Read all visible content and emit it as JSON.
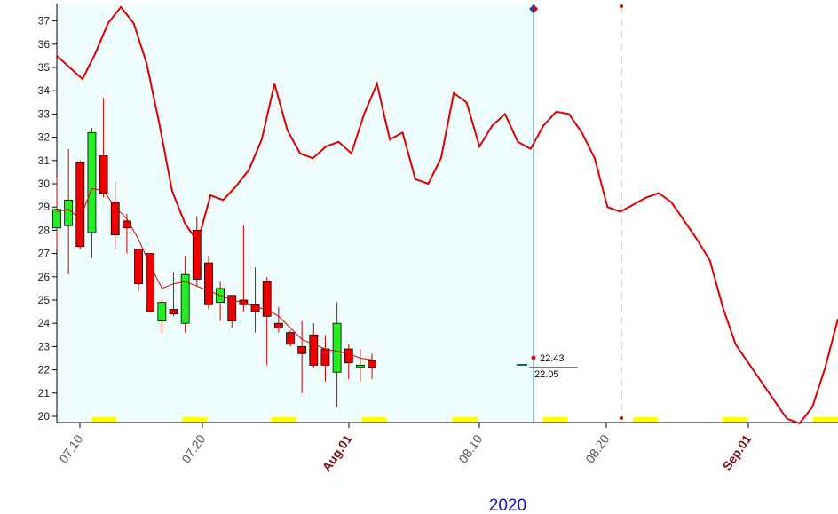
{
  "chart_data": {
    "type": "candlestick",
    "year_label": "2020",
    "ylim": [
      19.7,
      37.6
    ],
    "y_ticks": [
      20,
      21,
      22,
      23,
      24,
      25,
      26,
      27,
      28,
      29,
      30,
      31,
      32,
      33,
      34,
      35,
      36,
      37
    ],
    "x_ticks": [
      {
        "label": "07.10",
        "month": false
      },
      {
        "label": "07.20",
        "month": false
      },
      {
        "label": "Aug.01",
        "month": true
      },
      {
        "label": "08.10",
        "month": false
      },
      {
        "label": "08.20",
        "month": false
      },
      {
        "label": "Sep.01",
        "month": true
      }
    ],
    "candles": [
      {
        "o": 28.1,
        "h": 30.3,
        "l": 27.2,
        "c": 28.9
      },
      {
        "o": 28.2,
        "h": 31.5,
        "l": 26.1,
        "c": 29.3
      },
      {
        "o": 30.9,
        "h": 31.0,
        "l": 27.2,
        "c": 27.3
      },
      {
        "o": 27.9,
        "h": 32.4,
        "l": 26.8,
        "c": 32.2
      },
      {
        "o": 31.2,
        "h": 33.7,
        "l": 29.4,
        "c": 29.6
      },
      {
        "o": 29.2,
        "h": 30.1,
        "l": 27.2,
        "c": 27.8
      },
      {
        "o": 28.4,
        "h": 28.7,
        "l": 27.0,
        "c": 28.1
      },
      {
        "o": 27.2,
        "h": 27.2,
        "l": 25.4,
        "c": 25.7
      },
      {
        "o": 27.0,
        "h": 27.0,
        "l": 24.5,
        "c": 24.5
      },
      {
        "o": 24.1,
        "h": 25.0,
        "l": 23.6,
        "c": 24.9
      },
      {
        "o": 24.6,
        "h": 26.2,
        "l": 24.3,
        "c": 24.4
      },
      {
        "o": 24.0,
        "h": 26.9,
        "l": 23.6,
        "c": 26.1
      },
      {
        "o": 28.0,
        "h": 28.6,
        "l": 25.6,
        "c": 25.9
      },
      {
        "o": 26.6,
        "h": 26.9,
        "l": 24.6,
        "c": 24.8
      },
      {
        "o": 24.9,
        "h": 25.8,
        "l": 24.1,
        "c": 25.5
      },
      {
        "o": 25.2,
        "h": 25.2,
        "l": 23.8,
        "c": 24.1
      },
      {
        "o": 25.0,
        "h": 28.2,
        "l": 24.5,
        "c": 24.8
      },
      {
        "o": 24.8,
        "h": 26.4,
        "l": 23.6,
        "c": 24.5
      },
      {
        "o": 25.8,
        "h": 26.0,
        "l": 22.2,
        "c": 24.3
      },
      {
        "o": 24.0,
        "h": 24.7,
        "l": 23.6,
        "c": 23.8
      },
      {
        "o": 23.6,
        "h": 23.7,
        "l": 23.0,
        "c": 23.1
      },
      {
        "o": 23.0,
        "h": 24.1,
        "l": 21.0,
        "c": 22.7
      },
      {
        "o": 23.5,
        "h": 24.0,
        "l": 22.1,
        "c": 22.2
      },
      {
        "o": 22.9,
        "h": 23.5,
        "l": 21.5,
        "c": 22.2
      },
      {
        "o": 21.9,
        "h": 24.9,
        "l": 20.4,
        "c": 24.0
      },
      {
        "o": 22.9,
        "h": 23.1,
        "l": 21.6,
        "c": 22.3
      },
      {
        "o": 22.2,
        "h": 22.9,
        "l": 21.5,
        "c": 22.2
      },
      {
        "o": 22.4,
        "h": 22.7,
        "l": 21.6,
        "c": 22.1
      }
    ],
    "moving_average": [
      28.8,
      28.9,
      28.5,
      29.8,
      29.7,
      29.0,
      28.5,
      27.6,
      26.5,
      25.5,
      25.7,
      25.8,
      25.6,
      25.4,
      25.2,
      25.0,
      24.9,
      24.7,
      24.6,
      24.3,
      23.8,
      23.3,
      23.1,
      22.9,
      22.8,
      22.7,
      22.5,
      22.43
    ],
    "cycle_line": [
      35.5,
      35.0,
      34.5,
      35.6,
      36.9,
      37.6,
      36.9,
      35.2,
      32.6,
      29.7,
      28.3,
      27.5,
      29.5,
      29.3,
      29.9,
      30.6,
      31.9,
      34.3,
      32.3,
      31.3,
      31.1,
      31.6,
      31.8,
      31.3,
      33.0,
      34.3,
      31.9,
      32.2,
      30.2,
      30.0,
      31.1,
      33.9,
      33.5,
      31.6,
      32.5,
      33.0,
      31.8,
      31.5,
      32.5,
      33.1,
      33.0,
      32.2,
      31.1,
      29.0,
      28.8,
      29.1,
      29.4,
      29.6,
      29.2,
      28.4,
      27.6,
      26.7,
      24.7,
      23.1,
      22.3,
      21.5,
      20.7,
      19.9,
      19.7,
      20.4,
      22.1,
      24.2
    ],
    "value_labels": [
      "22.43",
      "22.05"
    ],
    "colors": {
      "up": "#22ee22",
      "down": "#ee0000",
      "line": "#dd0000",
      "shade": "#effdfd",
      "weekend": "#ffff00"
    }
  }
}
